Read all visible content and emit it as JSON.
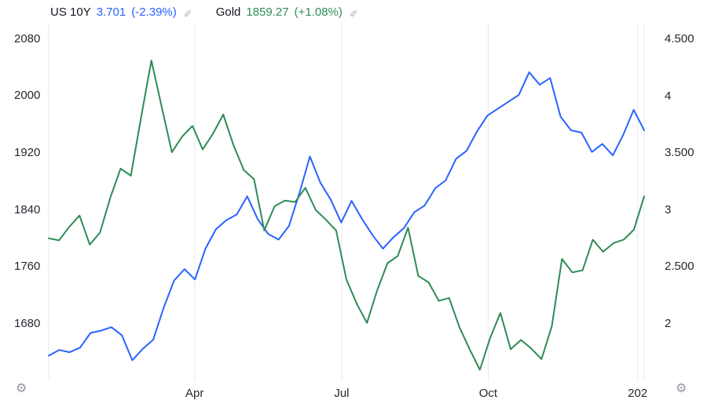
{
  "colors": {
    "background": "#ffffff",
    "grid": "#e7e9ef",
    "axis_text": "#24282f",
    "legend_name_text": "#131722",
    "icon_gray": "#9598a1"
  },
  "icons": {
    "edit": "edit-pencil-icon",
    "settings_left": "gear-icon",
    "settings_right": "gear-icon",
    "edit_glyph": "✎",
    "gear_glyph": "⚙"
  },
  "chart_data": {
    "type": "line",
    "title": "",
    "grid": "vertical-only",
    "x_ticks": [
      {
        "label": "Apr",
        "pos": 0.245
      },
      {
        "label": "Jul",
        "pos": 0.492
      },
      {
        "label": "Oct",
        "pos": 0.738
      },
      {
        "label": "202",
        "pos": 0.989
      }
    ],
    "left_axis": {
      "side": "left",
      "min": 1599,
      "max": 2102,
      "ticks": [
        {
          "value": 2080,
          "label": "2080"
        },
        {
          "value": 2000,
          "label": "2000"
        },
        {
          "value": 1920,
          "label": "1920"
        },
        {
          "value": 1840,
          "label": "1840"
        },
        {
          "value": 1760,
          "label": "1760"
        },
        {
          "value": 1680,
          "label": "1680"
        }
      ]
    },
    "right_axis": {
      "side": "right",
      "min": 1.496,
      "max": 4.638,
      "ticks": [
        {
          "value": 4.5,
          "label": "4.500"
        },
        {
          "value": 4.0,
          "label": "4"
        },
        {
          "value": 3.5,
          "label": "3.500"
        },
        {
          "value": 3.0,
          "label": "3"
        },
        {
          "value": 2.5,
          "label": "2.500"
        },
        {
          "value": 2.0,
          "label": "2"
        }
      ]
    },
    "series": [
      {
        "name": "US 10Y",
        "axis": "right",
        "color": "#2962ff",
        "last_value_label": "3.701",
        "change_label": "(-2.39%)",
        "values": [
          1.72,
          1.77,
          1.75,
          1.79,
          1.92,
          1.94,
          1.97,
          1.9,
          1.68,
          1.78,
          1.86,
          2.14,
          2.38,
          2.48,
          2.39,
          2.66,
          2.83,
          2.91,
          2.96,
          3.12,
          2.92,
          2.79,
          2.74,
          2.86,
          3.15,
          3.47,
          3.24,
          3.09,
          2.89,
          3.08,
          2.92,
          2.78,
          2.66,
          2.76,
          2.84,
          2.98,
          3.04,
          3.19,
          3.26,
          3.45,
          3.52,
          3.69,
          3.83,
          3.89,
          3.95,
          4.01,
          4.21,
          4.1,
          4.16,
          3.82,
          3.7,
          3.68,
          3.51,
          3.58,
          3.48,
          3.66,
          3.88,
          3.7
        ]
      },
      {
        "name": "Gold",
        "axis": "left",
        "color": "#2e8b57",
        "last_value_label": "1859.27",
        "change_label": "(+1.08%)",
        "values": [
          1800,
          1797,
          1816,
          1832,
          1791,
          1808,
          1857,
          1898,
          1888,
          1970,
          2050,
          1985,
          1921,
          1943,
          1958,
          1925,
          1947,
          1974,
          1931,
          1896,
          1883,
          1811,
          1845,
          1853,
          1851,
          1871,
          1840,
          1826,
          1811,
          1742,
          1708,
          1681,
          1727,
          1765,
          1775,
          1815,
          1747,
          1738,
          1712,
          1716,
          1675,
          1644,
          1615,
          1660,
          1695,
          1644,
          1657,
          1645,
          1630,
          1676,
          1771,
          1752,
          1755,
          1798,
          1781,
          1793,
          1798,
          1812,
          1859
        ]
      }
    ]
  }
}
